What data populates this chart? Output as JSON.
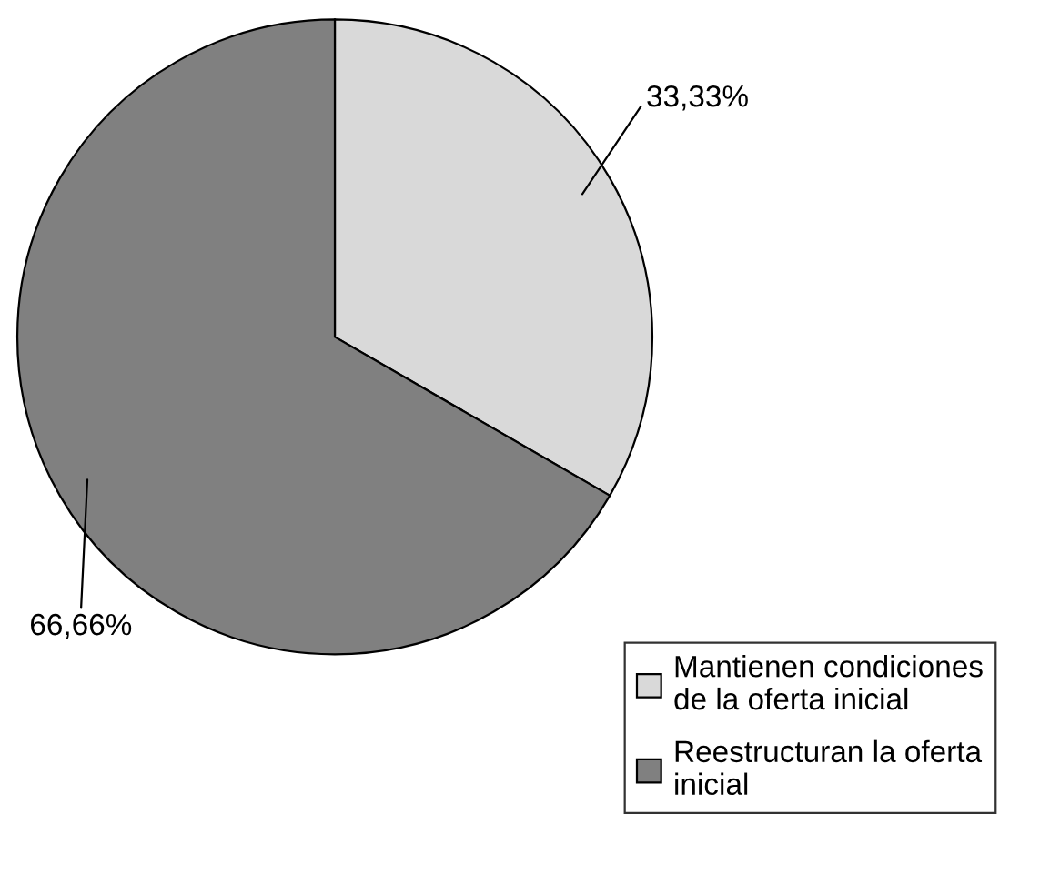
{
  "chart_data": {
    "type": "pie",
    "categories": [
      "Mantienen condiciones\nde la oferta inicial",
      "Reestructuran la oferta\ninicial"
    ],
    "values": [
      33.33,
      66.66
    ],
    "value_labels": [
      "33,33%",
      "66,66%"
    ],
    "colors": [
      "#d9d9d9",
      "#808080"
    ],
    "legend": "bottom right"
  }
}
